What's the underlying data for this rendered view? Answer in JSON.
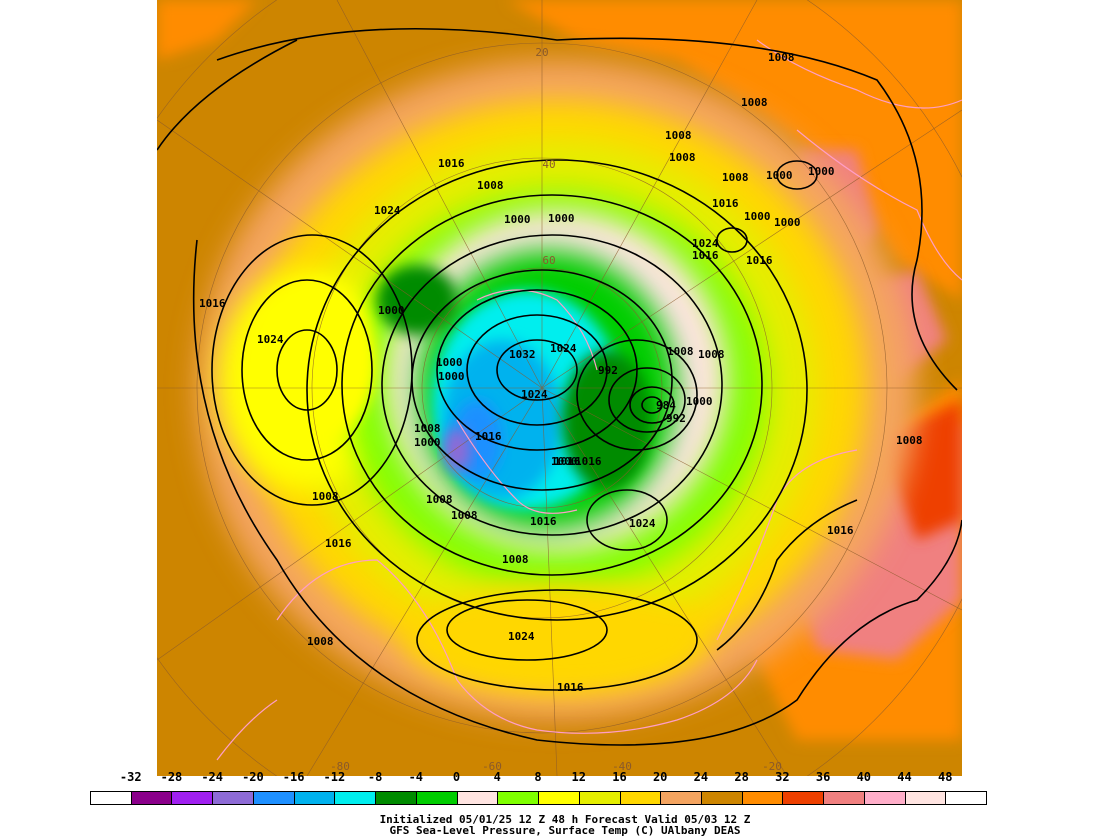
{
  "legend": {
    "ticks": [
      "-32",
      "-28",
      "-24",
      "-20",
      "-16",
      "-12",
      "-8",
      "-4",
      "0",
      "4",
      "8",
      "12",
      "16",
      "20",
      "24",
      "28",
      "32",
      "36",
      "40",
      "44",
      "48"
    ],
    "colors": [
      "#ffffff",
      "#8b008b",
      "#a020f0",
      "#8e6bd6",
      "#1e90ff",
      "#00b2ee",
      "#00eeee",
      "#008b00",
      "#00cd00",
      "#ffe4e1",
      "#7fff00",
      "#ffff00",
      "#e5ee00",
      "#ffd700",
      "#f4a460",
      "#cd8500",
      "#ff8c00",
      "#ee4000",
      "#f08080",
      "#ffaec9",
      "#ffe4e1",
      "#ffffff"
    ]
  },
  "caption": {
    "line1": "Initialized 05/01/25 12 Z  48 h Forecast Valid 05/03 12 Z",
    "line2": "GFS Sea-Level Pressure, Surface Temp (C)    UAlbany DEAS"
  },
  "map": {
    "lat_labels": [
      "20",
      "40",
      "60"
    ],
    "lon_labels": [
      "-80",
      "-60",
      "-40",
      "-20"
    ],
    "isobar_labels": [
      "1008",
      "1008",
      "1008",
      "1008",
      "1008",
      "1000",
      "1000",
      "1000",
      "1000",
      "1000",
      "1000",
      "1024",
      "1024",
      "1016",
      "1016",
      "1016",
      "1016",
      "1024",
      "1016",
      "1008",
      "1000",
      "1000",
      "1008",
      "1000",
      "1000",
      "1032",
      "1024",
      "1024",
      "992",
      "984",
      "992",
      "1000",
      "1008",
      "1008",
      "1016",
      "1000",
      "1008",
      "1008",
      "1016",
      "1024",
      "1016",
      "1008",
      "1016",
      "1024",
      "1016",
      "1008",
      "1008",
      "1016",
      "1008",
      "1016"
    ]
  }
}
